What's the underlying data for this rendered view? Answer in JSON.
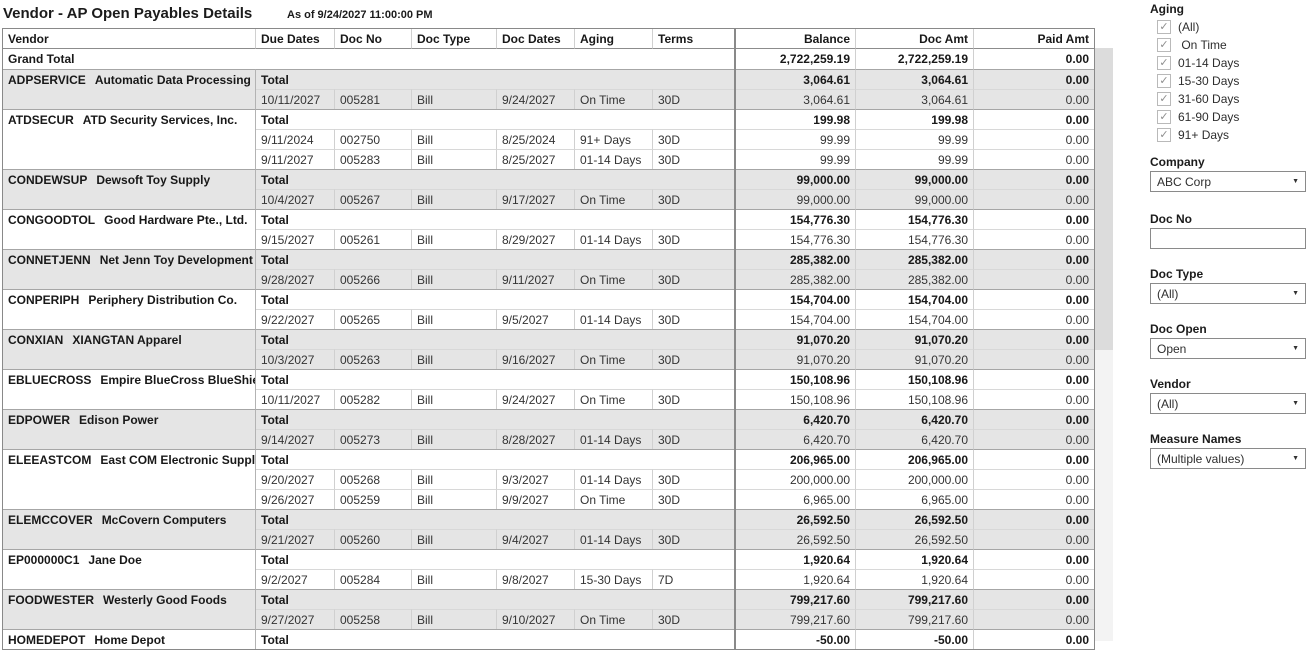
{
  "header": {
    "title": "Vendor - AP Open Payables Details",
    "as_of": "As of 9/24/2027 11:00:00 PM"
  },
  "icons": {
    "check": "✓",
    "dropdown": "▼"
  },
  "table": {
    "columns": [
      "Vendor",
      "Due Dates",
      "Doc No",
      "Doc Type",
      "Doc Dates",
      "Aging",
      "Terms"
    ],
    "amount_columns": [
      "Balance",
      "Doc Amt",
      "Paid Amt"
    ],
    "total_label": "Total",
    "grand_total": {
      "label": "Grand Total",
      "balance": "2,722,259.19",
      "doc_amt": "2,722,259.19",
      "paid_amt": "0.00"
    },
    "groups": [
      {
        "vendor": "ADPSERVICE",
        "name": "Automatic Data Processing Inc.",
        "total": {
          "balance": "3,064.61",
          "doc_amt": "3,064.61",
          "paid_amt": "0.00"
        },
        "rows": [
          {
            "due": "10/11/2027",
            "doc_no": "005281",
            "doc_type": "Bill",
            "doc_date": "9/24/2027",
            "aging": "On Time",
            "terms": "30D",
            "balance": "3,064.61",
            "doc_amt": "3,064.61",
            "paid_amt": "0.00"
          }
        ]
      },
      {
        "vendor": "ATDSECUR",
        "name": "ATD Security Services, Inc.",
        "total": {
          "balance": "199.98",
          "doc_amt": "199.98",
          "paid_amt": "0.00"
        },
        "rows": [
          {
            "due": "9/11/2024",
            "doc_no": "002750",
            "doc_type": "Bill",
            "doc_date": "8/25/2024",
            "aging": "91+ Days",
            "terms": "30D",
            "balance": "99.99",
            "doc_amt": "99.99",
            "paid_amt": "0.00"
          },
          {
            "due": "9/11/2027",
            "doc_no": "005283",
            "doc_type": "Bill",
            "doc_date": "8/25/2027",
            "aging": "01-14 Days",
            "terms": "30D",
            "balance": "99.99",
            "doc_amt": "99.99",
            "paid_amt": "0.00"
          }
        ]
      },
      {
        "vendor": "CONDEWSUP",
        "name": "Dewsoft Toy Supply",
        "total": {
          "balance": "99,000.00",
          "doc_amt": "99,000.00",
          "paid_amt": "0.00"
        },
        "rows": [
          {
            "due": "10/4/2027",
            "doc_no": "005267",
            "doc_type": "Bill",
            "doc_date": "9/17/2027",
            "aging": "On Time",
            "terms": "30D",
            "balance": "99,000.00",
            "doc_amt": "99,000.00",
            "paid_amt": "0.00"
          }
        ]
      },
      {
        "vendor": "CONGOODTOL",
        "name": "Good Hardware Pte., Ltd.",
        "total": {
          "balance": "154,776.30",
          "doc_amt": "154,776.30",
          "paid_amt": "0.00"
        },
        "rows": [
          {
            "due": "9/15/2027",
            "doc_no": "005261",
            "doc_type": "Bill",
            "doc_date": "8/29/2027",
            "aging": "01-14 Days",
            "terms": "30D",
            "balance": "154,776.30",
            "doc_amt": "154,776.30",
            "paid_amt": "0.00"
          }
        ]
      },
      {
        "vendor": "CONNETJENN",
        "name": "Net Jenn Toy Development",
        "total": {
          "balance": "285,382.00",
          "doc_amt": "285,382.00",
          "paid_amt": "0.00"
        },
        "rows": [
          {
            "due": "9/28/2027",
            "doc_no": "005266",
            "doc_type": "Bill",
            "doc_date": "9/11/2027",
            "aging": "On Time",
            "terms": "30D",
            "balance": "285,382.00",
            "doc_amt": "285,382.00",
            "paid_amt": "0.00"
          }
        ]
      },
      {
        "vendor": "CONPERIPH",
        "name": "Periphery Distribution Co.",
        "total": {
          "balance": "154,704.00",
          "doc_amt": "154,704.00",
          "paid_amt": "0.00"
        },
        "rows": [
          {
            "due": "9/22/2027",
            "doc_no": "005265",
            "doc_type": "Bill",
            "doc_date": "9/5/2027",
            "aging": "01-14 Days",
            "terms": "30D",
            "balance": "154,704.00",
            "doc_amt": "154,704.00",
            "paid_amt": "0.00"
          }
        ]
      },
      {
        "vendor": "CONXIAN",
        "name": "XIANGTAN Apparel",
        "total": {
          "balance": "91,070.20",
          "doc_amt": "91,070.20",
          "paid_amt": "0.00"
        },
        "rows": [
          {
            "due": "10/3/2027",
            "doc_no": "005263",
            "doc_type": "Bill",
            "doc_date": "9/16/2027",
            "aging": "On Time",
            "terms": "30D",
            "balance": "91,070.20",
            "doc_amt": "91,070.20",
            "paid_amt": "0.00"
          }
        ]
      },
      {
        "vendor": "EBLUECROSS",
        "name": "Empire BlueCross BlueShield",
        "total": {
          "balance": "150,108.96",
          "doc_amt": "150,108.96",
          "paid_amt": "0.00"
        },
        "rows": [
          {
            "due": "10/11/2027",
            "doc_no": "005282",
            "doc_type": "Bill",
            "doc_date": "9/24/2027",
            "aging": "On Time",
            "terms": "30D",
            "balance": "150,108.96",
            "doc_amt": "150,108.96",
            "paid_amt": "0.00"
          }
        ]
      },
      {
        "vendor": "EDPOWER",
        "name": "Edison Power",
        "total": {
          "balance": "6,420.70",
          "doc_amt": "6,420.70",
          "paid_amt": "0.00"
        },
        "rows": [
          {
            "due": "9/14/2027",
            "doc_no": "005273",
            "doc_type": "Bill",
            "doc_date": "8/28/2027",
            "aging": "01-14 Days",
            "terms": "30D",
            "balance": "6,420.70",
            "doc_amt": "6,420.70",
            "paid_amt": "0.00"
          }
        ]
      },
      {
        "vendor": "ELEEASTCOM",
        "name": "East COM Electronic Supplies",
        "total": {
          "balance": "206,965.00",
          "doc_amt": "206,965.00",
          "paid_amt": "0.00"
        },
        "rows": [
          {
            "due": "9/20/2027",
            "doc_no": "005268",
            "doc_type": "Bill",
            "doc_date": "9/3/2027",
            "aging": "01-14 Days",
            "terms": "30D",
            "balance": "200,000.00",
            "doc_amt": "200,000.00",
            "paid_amt": "0.00"
          },
          {
            "due": "9/26/2027",
            "doc_no": "005259",
            "doc_type": "Bill",
            "doc_date": "9/9/2027",
            "aging": "On Time",
            "terms": "30D",
            "balance": "6,965.00",
            "doc_amt": "6,965.00",
            "paid_amt": "0.00"
          }
        ]
      },
      {
        "vendor": "ELEMCCOVER",
        "name": "McCovern Computers",
        "total": {
          "balance": "26,592.50",
          "doc_amt": "26,592.50",
          "paid_amt": "0.00"
        },
        "rows": [
          {
            "due": "9/21/2027",
            "doc_no": "005260",
            "doc_type": "Bill",
            "doc_date": "9/4/2027",
            "aging": "01-14 Days",
            "terms": "30D",
            "balance": "26,592.50",
            "doc_amt": "26,592.50",
            "paid_amt": "0.00"
          }
        ]
      },
      {
        "vendor": "EP000000C1",
        "name": "Jane Doe",
        "total": {
          "balance": "1,920.64",
          "doc_amt": "1,920.64",
          "paid_amt": "0.00"
        },
        "rows": [
          {
            "due": "9/2/2027",
            "doc_no": "005284",
            "doc_type": "Bill",
            "doc_date": "9/8/2027",
            "aging": "15-30 Days",
            "terms": "7D",
            "balance": "1,920.64",
            "doc_amt": "1,920.64",
            "paid_amt": "0.00"
          }
        ]
      },
      {
        "vendor": "FOODWESTER",
        "name": "Westerly Good Foods",
        "total": {
          "balance": "799,217.60",
          "doc_amt": "799,217.60",
          "paid_amt": "0.00"
        },
        "rows": [
          {
            "due": "9/27/2027",
            "doc_no": "005258",
            "doc_type": "Bill",
            "doc_date": "9/10/2027",
            "aging": "On Time",
            "terms": "30D",
            "balance": "799,217.60",
            "doc_amt": "799,217.60",
            "paid_amt": "0.00"
          }
        ]
      },
      {
        "vendor": "HOMEDEPOT",
        "name": "Home Depot",
        "total": {
          "balance": "-50.00",
          "doc_amt": "-50.00",
          "paid_amt": "0.00"
        },
        "rows": []
      }
    ]
  },
  "filters": {
    "aging": {
      "label": "Aging",
      "options": [
        {
          "label": "(All)",
          "checked": true
        },
        {
          "label": " On Time",
          "checked": true
        },
        {
          "label": "01-14 Days",
          "checked": true
        },
        {
          "label": "15-30 Days",
          "checked": true
        },
        {
          "label": "31-60 Days",
          "checked": true
        },
        {
          "label": "61-90 Days",
          "checked": true
        },
        {
          "label": "91+ Days",
          "checked": true
        }
      ]
    },
    "company": {
      "label": "Company",
      "value": "ABC Corp"
    },
    "doc_no": {
      "label": "Doc No",
      "value": ""
    },
    "doc_type": {
      "label": "Doc Type",
      "value": "(All)"
    },
    "doc_open": {
      "label": "Doc Open",
      "value": "Open"
    },
    "vendor": {
      "label": "Vendor",
      "value": "(All)"
    },
    "measure_names": {
      "label": "Measure Names",
      "value": "(Multiple values)"
    }
  },
  "colors": {
    "shaded_row": "#e5e5e5",
    "outer_border": "#898989",
    "inner_border": "#d0d0d0",
    "scroll_thumb": "#dcdcdc"
  }
}
